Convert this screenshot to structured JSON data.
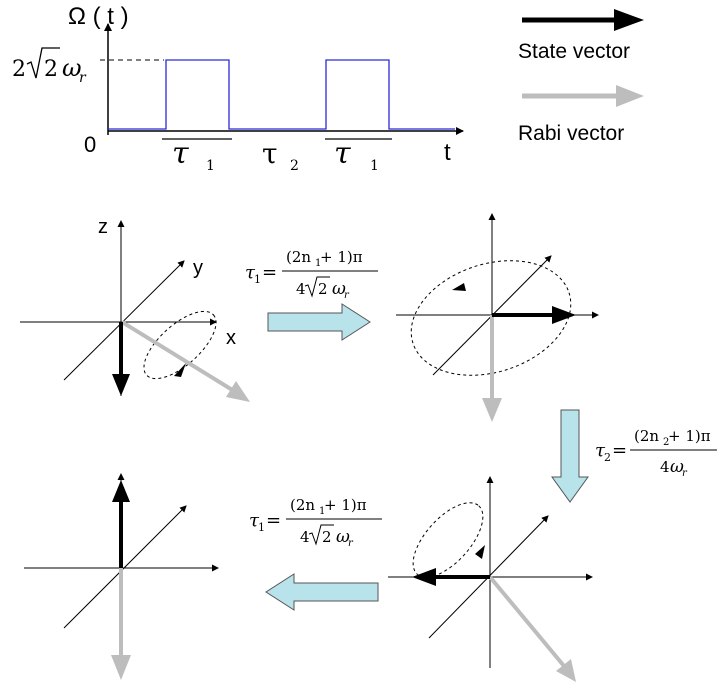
{
  "pulse_plot": {
    "y_axis_label": "Ω ( t )",
    "amplitude_label_coeff": "2",
    "amplitude_label_root": "2",
    "amplitude_label_omega": "ω",
    "amplitude_label_sub": "r",
    "zero_label": "0",
    "x_axis_label": "t",
    "interval_labels": [
      {
        "symbol": "τ",
        "sub": "1"
      },
      {
        "symbol": "τ",
        "sub": "2"
      },
      {
        "symbol": "τ",
        "sub": "1"
      }
    ],
    "pulse_color": "#2a2ad6"
  },
  "legend": {
    "state_label": "State vector",
    "rabi_label": "Rabi vector",
    "state_color": "#000000",
    "rabi_color": "#bdbdbd"
  },
  "axes_labels": {
    "z": "z",
    "y": "y",
    "x": "x"
  },
  "arrow_fill_color": "#b9e3ea",
  "formulas": {
    "tau1_first": {
      "lhs": "τ",
      "lhs_sub": "1",
      "num": "(2n",
      "num_sub": "1",
      "num_end": " + 1)π",
      "den_coeff": "4",
      "den_root": "2",
      "den_omega": "ω",
      "den_sub": "r"
    },
    "tau2": {
      "lhs": "τ",
      "lhs_sub": "2",
      "num": "(2n",
      "num_sub": "2",
      "num_end": " + 1)π",
      "den_coeff": "4",
      "den_omega": "ω",
      "den_sub": "r"
    },
    "tau1_second": {
      "lhs": "τ",
      "lhs_sub": "1",
      "num": "(2n",
      "num_sub": "1",
      "num_end": " + 1)π",
      "den_coeff": "4",
      "den_root": "2",
      "den_omega": "ω",
      "den_sub": "r"
    }
  }
}
